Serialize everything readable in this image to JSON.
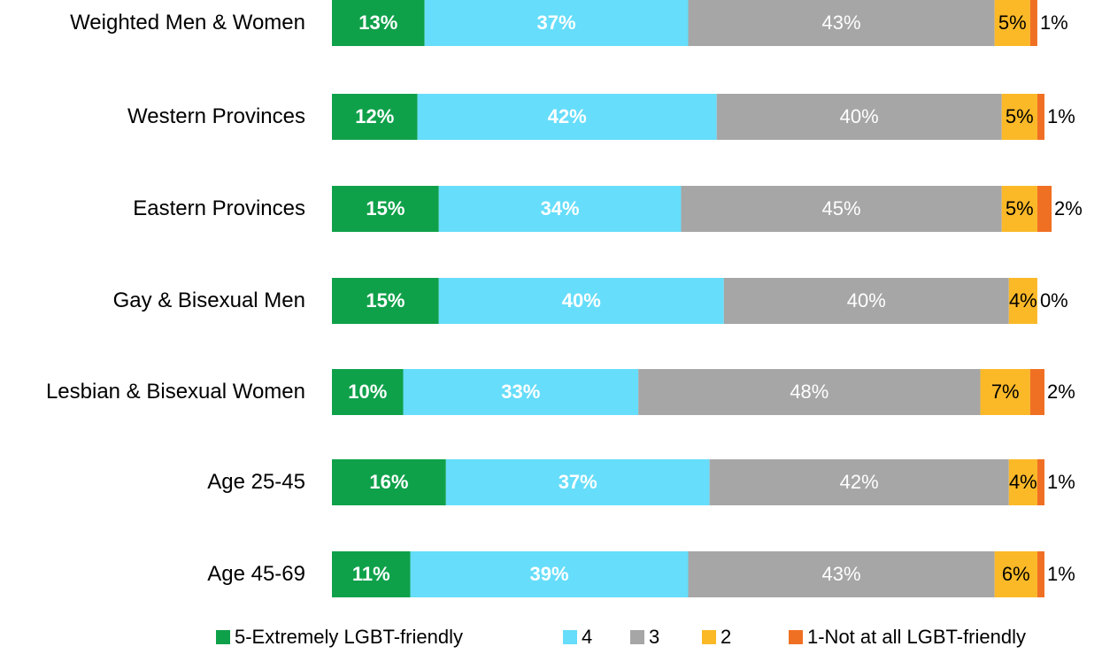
{
  "chart_data": {
    "type": "stacked-bar-horizontal",
    "categories": [
      "Weighted Men & Women",
      "Western Provinces",
      "Eastern Provinces",
      "Gay & Bisexual Men",
      "Lesbian & Bisexual Women",
      "Age 25-45",
      "Age 45-69"
    ],
    "xlim": [
      0,
      100
    ],
    "legend": "bottom",
    "series": [
      {
        "name": "5-Extremely LGBT-friendly",
        "color": "#0fa14a",
        "values": [
          13,
          12,
          15,
          15,
          10,
          16,
          11
        ],
        "value_labels": [
          "13%",
          "12%",
          "15%",
          "15%",
          "10%",
          "16%",
          "11%"
        ]
      },
      {
        "name": "4",
        "color": "#66ddfb",
        "values": [
          37,
          42,
          34,
          40,
          33,
          37,
          39
        ],
        "value_labels": [
          "37%",
          "42%",
          "34%",
          "40%",
          "33%",
          "37%",
          "39%"
        ]
      },
      {
        "name": "3",
        "color": "#a6a6a6",
        "values": [
          43,
          40,
          45,
          40,
          48,
          42,
          43
        ],
        "value_labels": [
          "43%",
          "40%",
          "45%",
          "40%",
          "48%",
          "42%",
          "43%"
        ]
      },
      {
        "name": "2",
        "color": "#fbb928",
        "values": [
          5,
          5,
          5,
          4,
          7,
          4,
          6
        ],
        "value_labels": [
          "5%",
          "5%",
          "5%",
          "4%",
          "7%",
          "4%",
          "6%"
        ]
      },
      {
        "name": "1-Not at all LGBT-friendly",
        "color": "#f07023",
        "values": [
          1,
          1,
          2,
          0,
          2,
          1,
          1
        ],
        "value_labels": [
          "1%",
          "1%",
          "2%",
          "0%",
          "2%",
          "1%",
          "1%"
        ]
      }
    ]
  }
}
